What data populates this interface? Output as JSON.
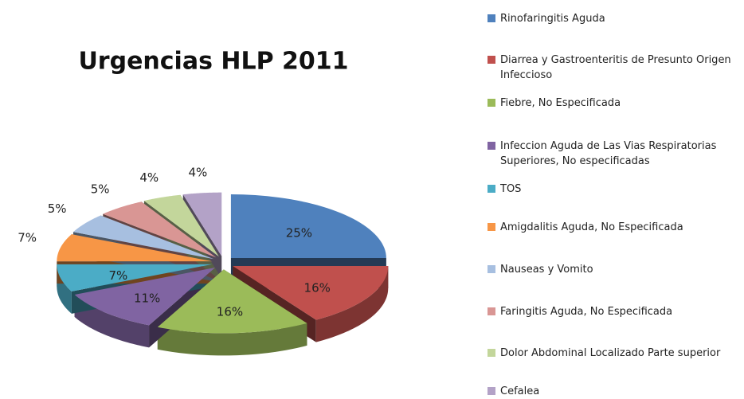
{
  "chart_data": {
    "type": "pie",
    "title": "Urgencias HLP 2011",
    "categories": [
      "Rinofaringitis Aguda",
      "Diarrea y Gastroenteritis de Presunto Origen Infeccioso",
      "Fiebre, No Especificada",
      "Infeccion Aguda de Las Vias Respiratorias Superiores, No especificadas",
      "TOS",
      "Amigdalitis Aguda, No Especificada",
      "Nauseas y Vomito",
      "Faringitis Aguda, No Especificada",
      "Dolor Abdominal Localizado Parte superior",
      "Cefalea"
    ],
    "values": [
      25,
      16,
      16,
      11,
      7,
      7,
      5,
      5,
      4,
      4
    ],
    "value_labels": [
      "25%",
      "16%",
      "16%",
      "11%",
      "7%",
      "7%",
      "5%",
      "5%",
      "4%",
      "4%"
    ],
    "colors": [
      "#4f81bd",
      "#c0504d",
      "#9bbb59",
      "#8064a2",
      "#4bacc6",
      "#f79646",
      "#a7bfe0",
      "#d99694",
      "#c3d69b",
      "#b3a2c7"
    ],
    "legend": "right"
  }
}
